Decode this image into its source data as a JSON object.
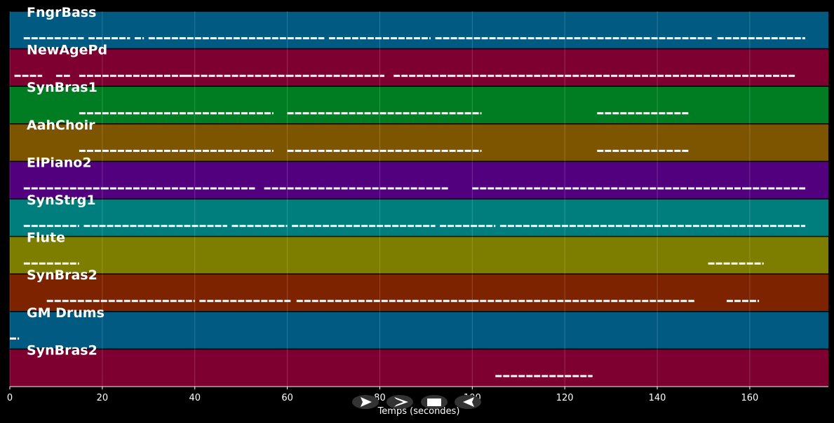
{
  "chart_data": {
    "type": "piano-roll",
    "xlabel": "Temps (secondes)",
    "xlim": [
      0,
      177
    ],
    "xticks": [
      0,
      20,
      40,
      60,
      80,
      100,
      120,
      140,
      160
    ],
    "grid": true,
    "note_color": "#ffffff",
    "tracks": [
      {
        "name": "FngrBass",
        "color": "#005a82",
        "segments": [
          [
            3,
            16
          ],
          [
            17,
            26
          ],
          [
            27,
            29
          ],
          [
            30,
            68
          ],
          [
            69,
            91
          ],
          [
            92,
            152
          ],
          [
            153,
            172
          ]
        ]
      },
      {
        "name": "NewAgePd",
        "color": "#7d0030",
        "segments": [
          [
            1,
            7
          ],
          [
            10,
            13
          ],
          [
            15,
            38
          ],
          [
            38,
            60
          ],
          [
            60,
            81
          ],
          [
            83,
            95
          ],
          [
            95,
            125
          ],
          [
            125,
            130
          ],
          [
            130,
            170
          ]
        ]
      },
      {
        "name": "SynBras1",
        "color": "#007d23",
        "segments": [
          [
            15,
            57
          ],
          [
            60,
            102
          ],
          [
            127,
            147
          ]
        ]
      },
      {
        "name": "AahChoir",
        "color": "#7d5500",
        "segments": [
          [
            15,
            57
          ],
          [
            60,
            102
          ],
          [
            127,
            147
          ]
        ]
      },
      {
        "name": "ElPiano2",
        "color": "#52007d",
        "segments": [
          [
            3,
            8
          ],
          [
            8,
            20
          ],
          [
            20,
            53
          ],
          [
            55,
            95
          ],
          [
            100,
            145
          ],
          [
            145,
            150
          ],
          [
            150,
            159
          ],
          [
            159,
            172
          ]
        ]
      },
      {
        "name": "SynStrg1",
        "color": "#007d7d",
        "segments": [
          [
            3,
            15
          ],
          [
            16,
            47
          ],
          [
            48,
            60
          ],
          [
            61,
            92
          ],
          [
            93,
            105
          ],
          [
            106,
            172
          ]
        ]
      },
      {
        "name": "Flute",
        "color": "#7d7d00",
        "segments": [
          [
            3,
            15
          ],
          [
            151,
            163
          ]
        ]
      },
      {
        "name": "SynBras2",
        "color": "#7d2300",
        "segments": [
          [
            8,
            40
          ],
          [
            41,
            61
          ],
          [
            62,
            100
          ],
          [
            100,
            148
          ],
          [
            155,
            162
          ]
        ]
      },
      {
        "name": "GM Drums",
        "color": "#005a82",
        "segments": [
          [
            0,
            2
          ]
        ]
      },
      {
        "name": "SynBras2",
        "color": "#7d0030",
        "segments": [
          [
            105,
            126
          ]
        ]
      }
    ]
  },
  "controls": {
    "rewind_icon": "rewind-icon",
    "play_icon": "play-icon",
    "stop_icon": "stop-icon",
    "back_icon": "back-icon"
  }
}
